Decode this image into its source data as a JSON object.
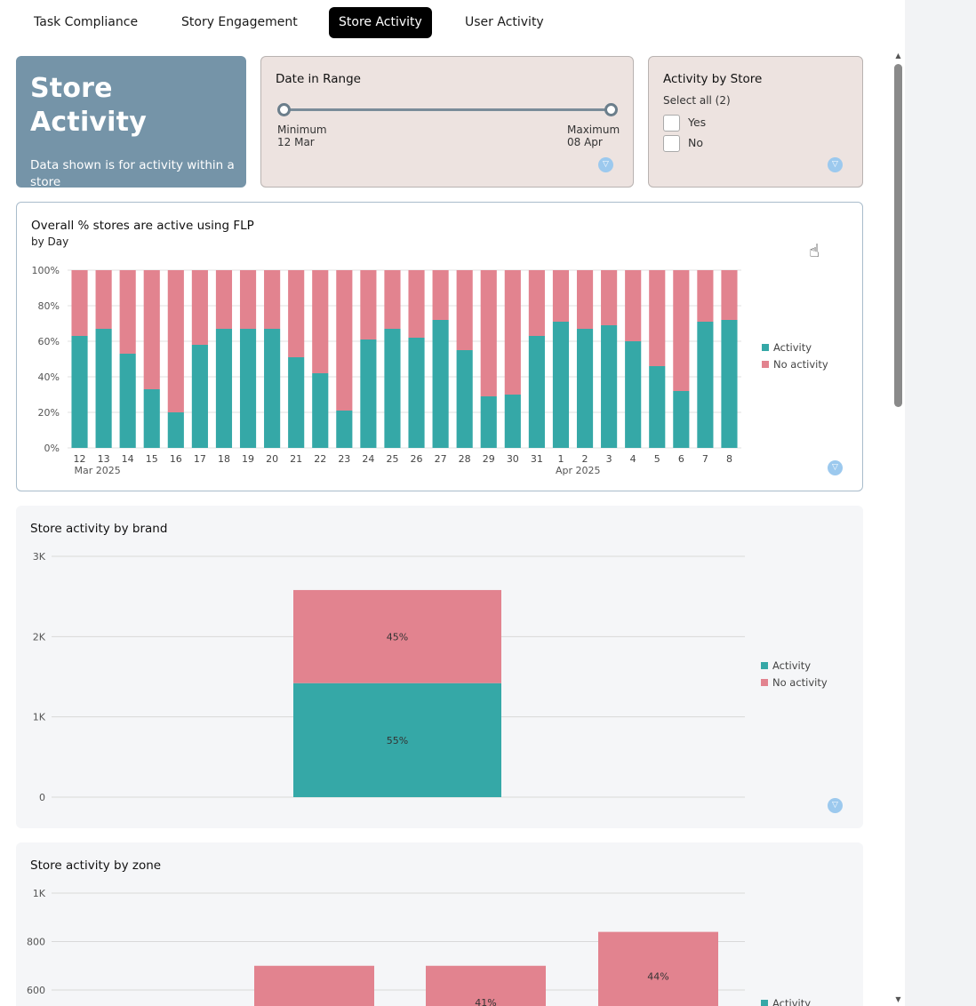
{
  "tabs": [
    {
      "label": "Task Compliance",
      "active": false
    },
    {
      "label": "Story Engagement",
      "active": false
    },
    {
      "label": "Store Activity",
      "active": true
    },
    {
      "label": "User Activity",
      "active": false
    }
  ],
  "hero": {
    "title": "Store Activity",
    "description": "Data shown is for activity within a store"
  },
  "date_filter": {
    "title": "Date in Range",
    "min_label": "Minimum",
    "min_value": "12 Mar",
    "max_label": "Maximum",
    "max_value": "08 Apr"
  },
  "store_filter": {
    "title": "Activity by Store",
    "select_all": "Select all (2)",
    "options": [
      "Yes",
      "No"
    ]
  },
  "colors": {
    "activity": "#35a8a7",
    "no_activity": "#e2838f",
    "accent_tab": "#000000",
    "hero_bg": "#7594a8"
  },
  "legend": {
    "activity": "Activity",
    "no_activity": "No activity"
  },
  "daily_chart": {
    "title": "Overall % stores are active using FLP",
    "subtitle": "by Day"
  },
  "brand_chart": {
    "title": "Store activity by brand"
  },
  "zone_chart": {
    "title": "Store activity by zone"
  },
  "chart_data": [
    {
      "type": "bar",
      "stacked": true,
      "title": "Overall % stores are active using FLP",
      "subtitle": "by Day",
      "categories": [
        "12",
        "13",
        "14",
        "15",
        "16",
        "17",
        "18",
        "19",
        "20",
        "21",
        "22",
        "23",
        "24",
        "25",
        "26",
        "27",
        "28",
        "29",
        "30",
        "31",
        "1",
        "2",
        "3",
        "4",
        "5",
        "6",
        "7",
        "8"
      ],
      "month_labels": [
        {
          "at": "12",
          "label": "Mar 2025"
        },
        {
          "at": "1",
          "label": "Apr 2025"
        }
      ],
      "series": [
        {
          "name": "Activity",
          "values": [
            63,
            67,
            53,
            33,
            20,
            58,
            67,
            67,
            67,
            51,
            42,
            21,
            61,
            67,
            62,
            72,
            55,
            29,
            30,
            63,
            71,
            67,
            69,
            60,
            46,
            32,
            71,
            72
          ]
        },
        {
          "name": "No activity",
          "values": [
            37,
            33,
            47,
            67,
            80,
            42,
            33,
            33,
            33,
            49,
            58,
            79,
            39,
            33,
            38,
            28,
            45,
            71,
            70,
            37,
            29,
            33,
            31,
            40,
            54,
            68,
            29,
            28
          ]
        }
      ],
      "ylim": [
        0,
        100
      ],
      "yticks": [
        "0%",
        "20%",
        "40%",
        "60%",
        "80%",
        "100%"
      ],
      "legend": "right",
      "grid": true
    },
    {
      "type": "bar",
      "stacked": true,
      "title": "Store activity by brand",
      "categories": [
        ""
      ],
      "series": [
        {
          "name": "Activity",
          "values": [
            1420
          ],
          "labels": [
            "55%"
          ]
        },
        {
          "name": "No activity",
          "values": [
            1160
          ],
          "labels": [
            "45%"
          ]
        }
      ],
      "ylim": [
        0,
        3000
      ],
      "yticks": [
        "0",
        "1K",
        "2K",
        "3K"
      ],
      "legend": "right",
      "grid": true
    },
    {
      "type": "bar",
      "stacked": true,
      "title": "Store activity by zone",
      "categories": [
        "",
        "",
        ""
      ],
      "series": [
        {
          "name": "Activity",
          "values": [
            null,
            null,
            null
          ],
          "labels": [
            "",
            "",
            ""
          ]
        },
        {
          "name": "No activity",
          "values": [
            null,
            null,
            null
          ],
          "labels": [
            "",
            "41%",
            "44%"
          ]
        }
      ],
      "totals": [
        700,
        700,
        840
      ],
      "ylim": [
        0,
        1000
      ],
      "yticks": [
        "600",
        "800",
        "1K"
      ],
      "legend": "right",
      "grid": true
    }
  ]
}
